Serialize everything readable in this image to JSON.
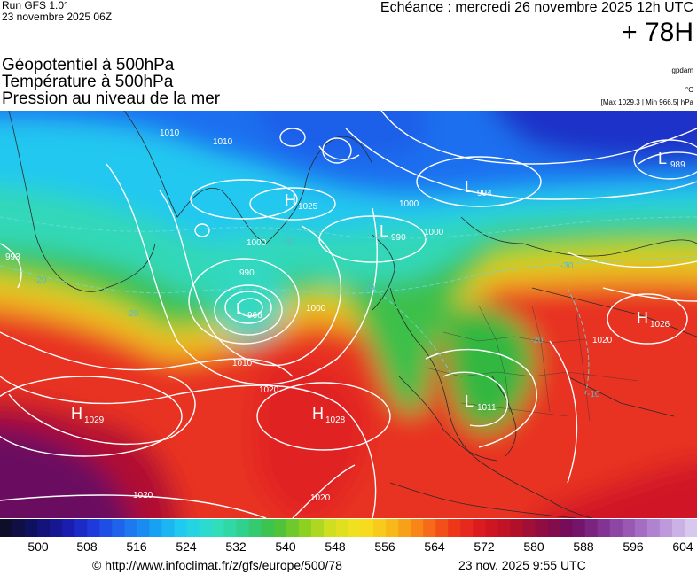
{
  "header": {
    "run_label": "Run GFS 1.0°",
    "run_date": "23 novembre 2025 06Z",
    "echeance": "Echéance : mercredi 26 novembre 2025 12h UTC",
    "lead_time": "+ 78H"
  },
  "fields": [
    "Géopotentiel à 500hPa",
    "Température à 500hPa",
    "Pression au niveau de la mer"
  ],
  "units": {
    "geopotential": "gpdam",
    "temperature": "°C",
    "pressure_range": "[Max 1029.3 | Min 966.5] hPa"
  },
  "pressure_centers": [
    {
      "type": "L",
      "value": "989"
    },
    {
      "type": "L",
      "value": "994"
    },
    {
      "type": "H",
      "value": "1025"
    },
    {
      "type": "L",
      "value": "990"
    },
    {
      "type": "L",
      "value": "966"
    },
    {
      "type": "H",
      "value": "1026"
    },
    {
      "type": "H",
      "value": "1029"
    },
    {
      "type": "H",
      "value": "1028"
    },
    {
      "type": "L",
      "value": "1011"
    }
  ],
  "isobar_labels": [
    "1010",
    "1010",
    "1000",
    "1000",
    "1000",
    "990",
    "1000",
    "1010",
    "1020",
    "1020",
    "1020",
    "1020",
    "993"
  ],
  "isotherm_labels": [
    "-20",
    "-20",
    "-30",
    "-20",
    "-30",
    "-20",
    "-10"
  ],
  "legend": {
    "ticks": [
      "500",
      "508",
      "516",
      "524",
      "532",
      "540",
      "548",
      "556",
      "564",
      "572",
      "580",
      "588",
      "596",
      "604"
    ],
    "color_stops": [
      "#0e0e2a",
      "#10106a",
      "#1a1aa8",
      "#1e3ce0",
      "#1f6ff0",
      "#17a0f2",
      "#20d0f0",
      "#30e0c0",
      "#2fd08a",
      "#40c040",
      "#8ad020",
      "#d8e020",
      "#f8e020",
      "#f8b818",
      "#f87818",
      "#f03818",
      "#d81820",
      "#b81028",
      "#900c40",
      "#700c60",
      "#803090",
      "#9a5cb8",
      "#b890d8",
      "#d8c8f0"
    ]
  },
  "footer": {
    "url": "© http://www.infoclimat.fr/z/gfs/europe/500/78",
    "timestamp": "23 nov. 2025  9:55 UTC"
  }
}
